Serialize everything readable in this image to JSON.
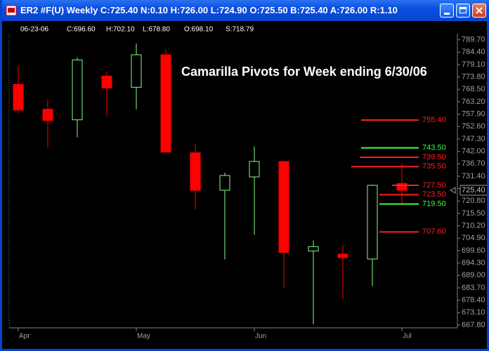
{
  "window_title": "ER2 #F(U) Weekly C:725.40 N:0.10 H:726.00 L:724.90 O:725.50 B:725.40 A:726.00 R:1.10",
  "info_line": [
    "06-23-06",
    "C:696.60",
    "H:702.10",
    "L:678.80",
    "O:698.10",
    "S:718.79"
  ],
  "chart_data": {
    "type": "candlestick",
    "title": "Camarilla Pivots for Week ending 6/30/06",
    "open": [
      770.6,
      760.0,
      755.5,
      774.2,
      769.4,
      783.3,
      741.4,
      725.4,
      731.1,
      737.7,
      699.4,
      698.1,
      696.0,
      728.3
    ],
    "high": [
      778.7,
      764.3,
      782.1,
      776.0,
      788.1,
      785.4,
      745.0,
      732.9,
      744.1,
      737.7,
      704.0,
      702.1,
      727.8,
      737.1
    ],
    "low": [
      758.2,
      743.5,
      748.0,
      757.0,
      760.0,
      741.7,
      717.2,
      695.8,
      706.4,
      683.8,
      668.1,
      678.8,
      684.4,
      719.0
    ],
    "close": [
      759.7,
      755.2,
      781.1,
      769.1,
      783.3,
      741.7,
      725.4,
      731.7,
      737.7,
      698.8,
      701.3,
      696.6,
      727.5,
      725.4
    ],
    "up_color": "#80ff80",
    "down_color": "#ff0000",
    "ylim": [
      666,
      792
    ],
    "yticks": [
      {
        "value": 789.7,
        "label": "789.70"
      },
      {
        "value": 784.4,
        "label": "784.40"
      },
      {
        "value": 779.1,
        "label": "779.10"
      },
      {
        "value": 773.8,
        "label": "773.80"
      },
      {
        "value": 768.5,
        "label": "768.50"
      },
      {
        "value": 763.2,
        "label": "763.20"
      },
      {
        "value": 757.9,
        "label": "757.90"
      },
      {
        "value": 752.6,
        "label": "752.60"
      },
      {
        "value": 747.3,
        "label": "747.30"
      },
      {
        "value": 742,
        "label": "742.00"
      },
      {
        "value": 736.7,
        "label": "736.70"
      },
      {
        "value": 731.4,
        "label": "731.40"
      },
      {
        "value": 726.1,
        "label": "726.10"
      },
      {
        "value": 720.8,
        "label": "720.80"
      },
      {
        "value": 715.5,
        "label": "715.50"
      },
      {
        "value": 710.2,
        "label": "710.20"
      },
      {
        "value": 704.9,
        "label": "704.90"
      },
      {
        "value": 699.6,
        "label": "699.60"
      },
      {
        "value": 694.3,
        "label": "694.30"
      },
      {
        "value": 689,
        "label": "689.00"
      },
      {
        "value": 683.7,
        "label": "683.70"
      },
      {
        "value": 678.4,
        "label": "678.40"
      },
      {
        "value": 673.1,
        "label": "673.10"
      },
      {
        "value": 667.8,
        "label": "667.80"
      }
    ],
    "xticks": [
      {
        "value": 0,
        "label": "Apr"
      },
      {
        "value": 4,
        "label": "May"
      },
      {
        "value": 8,
        "label": "Jun"
      },
      {
        "value": 13,
        "label": "Jul"
      }
    ],
    "last_price": {
      "value": 725.4,
      "label": "725.40"
    },
    "pivots": [
      {
        "value": 755.4,
        "label": "755.40",
        "color": "#ff2020"
      },
      {
        "value": 743.5,
        "label": "743.50",
        "color": "#40ff40"
      },
      {
        "value": 739.5,
        "label": "739.50",
        "color": "#ff2020"
      },
      {
        "value": 735.5,
        "label": "735.50",
        "color": "#ff2020"
      },
      {
        "value": 727.5,
        "label": "727.50",
        "color": "#ff2020"
      },
      {
        "value": 723.5,
        "label": "723.50",
        "color": "#ff2020"
      },
      {
        "value": 719.5,
        "label": "719.50",
        "color": "#40ff40"
      },
      {
        "value": 707.6,
        "label": "707.60",
        "color": "#ff2020"
      }
    ]
  }
}
